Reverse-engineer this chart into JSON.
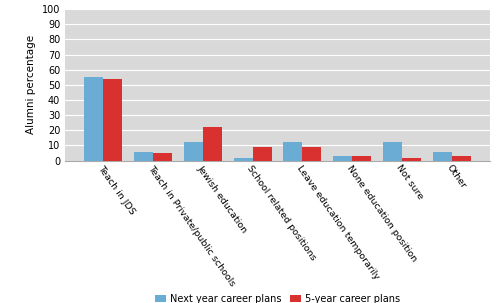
{
  "categories": [
    "Teach in JDS",
    "Teach in Private/public schools",
    "Jewish education",
    "School related positions",
    "Leave education temporarily",
    "None education position",
    "Not sure",
    "Other"
  ],
  "next_year": [
    55,
    6,
    12,
    2,
    12,
    3,
    12,
    6
  ],
  "five_year": [
    54,
    5,
    22,
    9,
    9,
    3,
    2,
    3
  ],
  "blue_color": "#6aacd4",
  "red_color": "#d93030",
  "ylabel": "Alumni percentage",
  "ylim": [
    0,
    100
  ],
  "yticks": [
    0,
    10,
    20,
    30,
    40,
    50,
    60,
    70,
    80,
    90,
    100
  ],
  "legend_next": "Next year career plans",
  "legend_5year": "5-year career plans",
  "bg_color": "#d9d9d9",
  "bar_width": 0.38
}
